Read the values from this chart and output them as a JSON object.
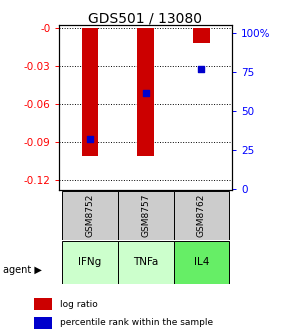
{
  "title": "GDS501 / 13080",
  "samples": [
    "GSM8752",
    "GSM8757",
    "GSM8762"
  ],
  "agents": [
    "IFNg",
    "TNFa",
    "IL4"
  ],
  "log_ratios": [
    -0.101,
    -0.101,
    -0.012
  ],
  "percentile_ranks": [
    32,
    62,
    77
  ],
  "ylim_left": [
    -0.128,
    0.002
  ],
  "ylim_right": [
    -0.533,
    105.33
  ],
  "yticks_left": [
    0,
    -0.03,
    -0.06,
    -0.09,
    -0.12
  ],
  "yticks_right": [
    0,
    25,
    50,
    75,
    100
  ],
  "ytick_labels_left": [
    "-0",
    "-0.03",
    "-0.06",
    "-0.09",
    "-0.12"
  ],
  "ytick_labels_right": [
    "0",
    "25",
    "50",
    "75",
    "100%"
  ],
  "bar_color": "#cc0000",
  "marker_color": "#0000cc",
  "agent_colors": [
    "#ccffcc",
    "#ccffcc",
    "#66ee66"
  ],
  "sample_box_color": "#cccccc",
  "title_fontsize": 10,
  "tick_fontsize": 7.5,
  "bar_width": 0.3
}
